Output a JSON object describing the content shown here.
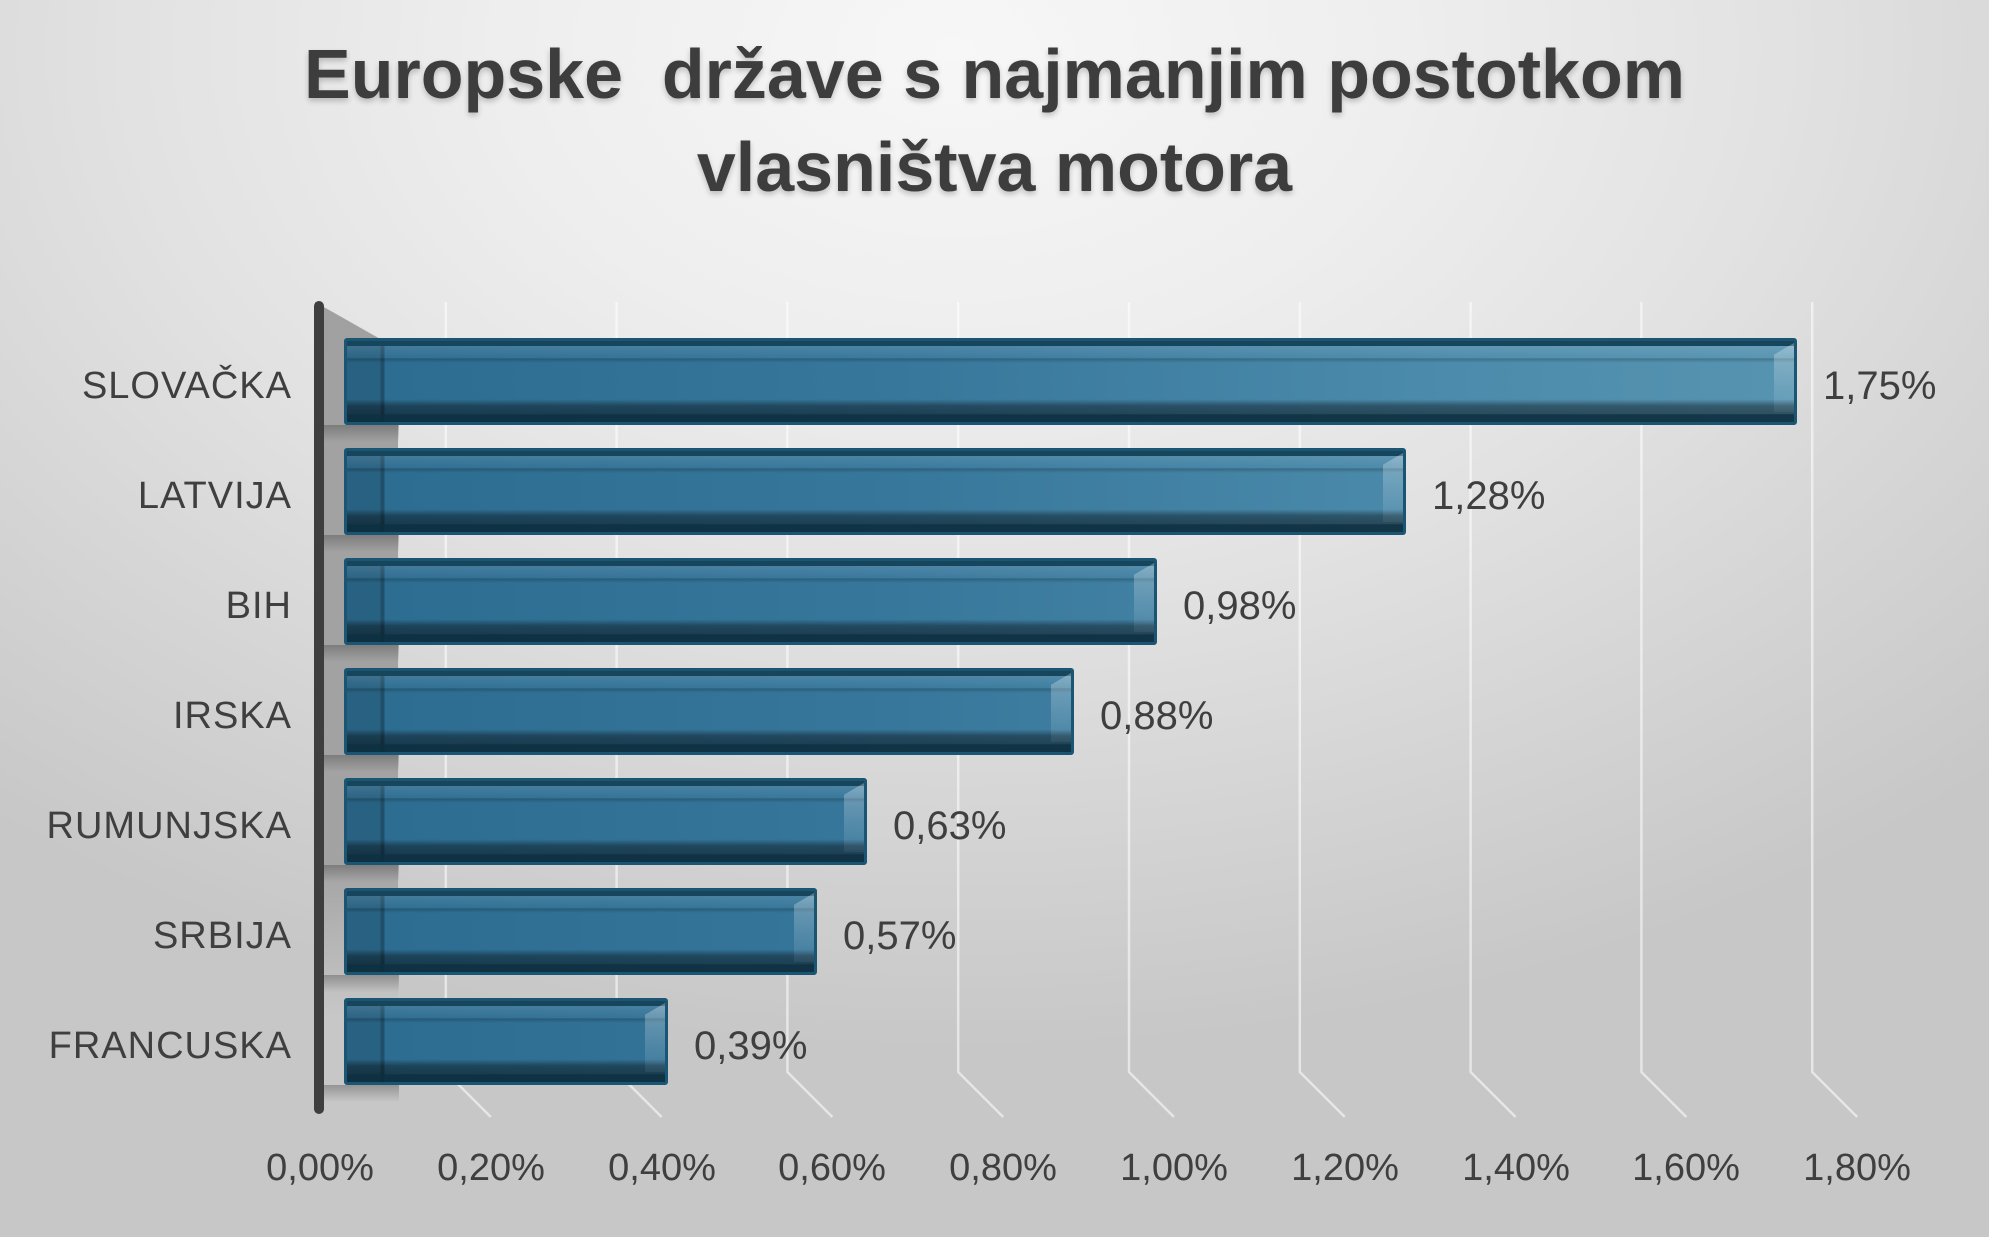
{
  "title": {
    "line1": "Europske  države s najmanjim postotkom",
    "line2": "vlasništva motora"
  },
  "chart_data": {
    "type": "bar",
    "orientation": "horizontal",
    "style": "3d-bar",
    "title": "Europske  države s najmanjim postotkom vlasništva motora",
    "categories": [
      "SLOVAČKA",
      "LATVIJA",
      "BIH",
      "IRSKA",
      "RUMUNJSKA",
      "SRBIJA",
      "FRANCUSKA"
    ],
    "values": [
      1.75,
      1.28,
      0.98,
      0.88,
      0.63,
      0.57,
      0.39
    ],
    "value_labels": [
      "1,75%",
      "1,28%",
      "0,98%",
      "0,88%",
      "0,63%",
      "0,57%",
      "0,39%"
    ],
    "xlabel": "",
    "ylabel": "",
    "xlim": [
      0,
      1.8
    ],
    "x_tick_step": 0.2,
    "x_tick_labels": [
      "0,00%",
      "0,20%",
      "0,40%",
      "0,60%",
      "0,80%",
      "1,00%",
      "1,20%",
      "1,40%",
      "1,60%",
      "1,80%"
    ],
    "grid": true,
    "legend": false,
    "colors": {
      "bar_fill_dark": "#2c6c90",
      "bar_fill_light": "#5895b2",
      "bar_outline": "#1a5674",
      "axis_line": "#3e3e3e",
      "wall_shadow": "#9d9d9d",
      "gridline": "rgba(255,255,255,0.55)",
      "text": "#3f3f3f",
      "title_text": "#3d3d3d"
    }
  }
}
